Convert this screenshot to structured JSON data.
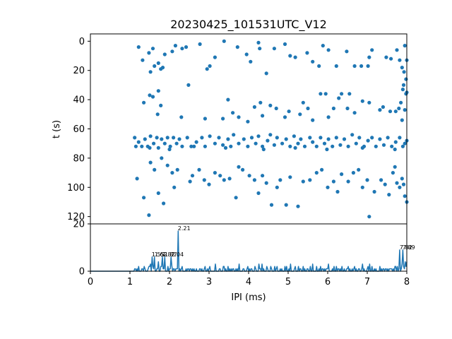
{
  "chart_data": [
    {
      "type": "scatter",
      "title": "20230425_101531UTC_V12",
      "ylabel": "t (s)",
      "xlim": [
        0,
        8
      ],
      "ylim": [
        125,
        -5
      ],
      "y_inverted": true,
      "yticks": [
        "0",
        "20",
        "40",
        "60",
        "80",
        "100",
        "120"
      ],
      "color": "#1f77b4",
      "x_shared_with_panel_below": true,
      "points": [
        [
          1.22,
          4
        ],
        [
          1.32,
          13
        ],
        [
          1.48,
          8
        ],
        [
          1.52,
          21
        ],
        [
          1.62,
          17
        ],
        [
          1.58,
          5
        ],
        [
          1.72,
          15
        ],
        [
          1.78,
          19
        ],
        [
          1.88,
          9
        ],
        [
          1.83,
          18
        ],
        [
          2.07,
          7
        ],
        [
          2.15,
          3
        ],
        [
          2.32,
          5
        ],
        [
          2.42,
          4
        ],
        [
          2.48,
          30
        ],
        [
          2.77,
          2
        ],
        [
          2.95,
          19
        ],
        [
          3.02,
          17
        ],
        [
          3.15,
          11
        ],
        [
          3.38,
          0
        ],
        [
          3.72,
          4
        ],
        [
          3.95,
          9
        ],
        [
          4.05,
          14
        ],
        [
          4.25,
          1
        ],
        [
          4.28,
          5
        ],
        [
          4.45,
          22
        ],
        [
          4.65,
          5
        ],
        [
          4.92,
          2
        ],
        [
          5.05,
          10
        ],
        [
          5.18,
          11
        ],
        [
          5.48,
          8
        ],
        [
          5.62,
          14
        ],
        [
          5.78,
          17
        ],
        [
          5.88,
          3
        ],
        [
          6.02,
          6
        ],
        [
          6.22,
          17
        ],
        [
          6.48,
          7
        ],
        [
          6.68,
          17
        ],
        [
          6.85,
          17
        ],
        [
          7.02,
          17
        ],
        [
          7.05,
          11
        ],
        [
          7.12,
          6
        ],
        [
          7.48,
          11
        ],
        [
          7.6,
          12
        ],
        [
          7.75,
          6
        ],
        [
          7.82,
          13
        ],
        [
          7.88,
          18
        ],
        [
          7.93,
          21
        ],
        [
          7.98,
          26
        ],
        [
          7.95,
          3
        ],
        [
          8.0,
          13
        ],
        [
          7.92,
          30
        ],
        [
          7.98,
          36
        ],
        [
          7.85,
          42
        ],
        [
          1.35,
          42
        ],
        [
          1.5,
          37
        ],
        [
          1.58,
          38
        ],
        [
          1.72,
          34
        ],
        [
          1.78,
          44
        ],
        [
          1.7,
          50
        ],
        [
          2.3,
          52
        ],
        [
          2.9,
          53
        ],
        [
          3.35,
          53
        ],
        [
          3.48,
          40
        ],
        [
          3.6,
          49
        ],
        [
          3.75,
          52
        ],
        [
          3.98,
          55
        ],
        [
          4.15,
          45
        ],
        [
          4.3,
          42
        ],
        [
          4.35,
          51
        ],
        [
          4.55,
          44
        ],
        [
          4.7,
          46
        ],
        [
          4.92,
          52
        ],
        [
          5.02,
          48
        ],
        [
          5.3,
          50
        ],
        [
          5.38,
          42
        ],
        [
          5.5,
          46
        ],
        [
          5.62,
          54
        ],
        [
          5.82,
          36
        ],
        [
          5.95,
          36
        ],
        [
          6.02,
          52
        ],
        [
          6.15,
          46
        ],
        [
          6.28,
          39
        ],
        [
          6.35,
          36
        ],
        [
          6.5,
          46
        ],
        [
          6.55,
          36
        ],
        [
          6.68,
          49
        ],
        [
          6.88,
          41
        ],
        [
          7.05,
          42
        ],
        [
          7.32,
          47
        ],
        [
          7.4,
          45
        ],
        [
          7.58,
          48
        ],
        [
          7.72,
          48
        ],
        [
          7.8,
          46
        ],
        [
          7.9,
          33
        ],
        [
          7.95,
          47
        ],
        [
          8.0,
          35
        ],
        [
          7.88,
          54
        ],
        [
          1.12,
          66
        ],
        [
          1.22,
          69
        ],
        [
          1.3,
          72
        ],
        [
          1.38,
          67
        ],
        [
          1.45,
          72
        ],
        [
          1.52,
          65
        ],
        [
          1.6,
          70
        ],
        [
          1.68,
          66
        ],
        [
          1.72,
          73
        ],
        [
          1.8,
          67
        ],
        [
          1.88,
          70
        ],
        [
          1.95,
          66
        ],
        [
          2.02,
          72
        ],
        [
          2.1,
          66
        ],
        [
          2.18,
          70
        ],
        [
          2.25,
          67
        ],
        [
          2.32,
          72
        ],
        [
          2.45,
          66
        ],
        [
          2.55,
          72
        ],
        [
          2.68,
          69
        ],
        [
          2.82,
          66
        ],
        [
          2.9,
          72
        ],
        [
          3.02,
          65
        ],
        [
          3.15,
          70
        ],
        [
          3.25,
          66
        ],
        [
          3.35,
          71
        ],
        [
          3.48,
          67
        ],
        [
          3.55,
          72
        ],
        [
          3.62,
          64
        ],
        [
          3.75,
          70
        ],
        [
          3.88,
          67
        ],
        [
          3.98,
          72
        ],
        [
          4.08,
          66
        ],
        [
          4.18,
          70
        ],
        [
          4.25,
          65
        ],
        [
          4.35,
          72
        ],
        [
          4.48,
          68
        ],
        [
          4.55,
          64
        ],
        [
          4.65,
          71
        ],
        [
          4.72,
          66
        ],
        [
          4.85,
          70
        ],
        [
          4.95,
          67
        ],
        [
          5.05,
          72
        ],
        [
          5.15,
          65
        ],
        [
          5.25,
          70
        ],
        [
          5.32,
          67
        ],
        [
          5.42,
          72
        ],
        [
          5.55,
          66
        ],
        [
          5.62,
          69
        ],
        [
          5.72,
          72
        ],
        [
          5.82,
          66
        ],
        [
          5.92,
          70
        ],
        [
          6.02,
          67
        ],
        [
          6.12,
          72
        ],
        [
          6.22,
          66
        ],
        [
          6.32,
          71
        ],
        [
          6.42,
          67
        ],
        [
          6.52,
          72
        ],
        [
          6.62,
          64
        ],
        [
          6.72,
          70
        ],
        [
          6.8,
          66
        ],
        [
          6.92,
          72
        ],
        [
          7.02,
          68
        ],
        [
          7.12,
          66
        ],
        [
          7.22,
          72
        ],
        [
          7.32,
          67
        ],
        [
          7.42,
          71
        ],
        [
          7.52,
          66
        ],
        [
          7.62,
          72
        ],
        [
          7.72,
          69
        ],
        [
          7.82,
          66
        ],
        [
          7.9,
          72
        ],
        [
          7.95,
          70
        ],
        [
          8.0,
          68
        ],
        [
          1.15,
          72
        ],
        [
          1.5,
          73
        ],
        [
          2.0,
          74
        ],
        [
          2.62,
          72
        ],
        [
          3.42,
          73
        ],
        [
          4.38,
          74
        ],
        [
          5.18,
          73
        ],
        [
          5.98,
          74
        ],
        [
          6.88,
          73
        ],
        [
          7.7,
          74
        ],
        [
          1.52,
          83
        ],
        [
          1.62,
          88
        ],
        [
          1.8,
          80
        ],
        [
          1.95,
          85
        ],
        [
          2.07,
          90
        ],
        [
          2.2,
          88
        ],
        [
          2.52,
          96
        ],
        [
          2.58,
          92
        ],
        [
          2.75,
          88
        ],
        [
          2.88,
          95
        ],
        [
          3.0,
          98
        ],
        [
          3.15,
          90
        ],
        [
          3.28,
          92
        ],
        [
          3.38,
          95
        ],
        [
          3.52,
          94
        ],
        [
          3.68,
          107
        ],
        [
          3.75,
          86
        ],
        [
          3.85,
          88
        ],
        [
          4.02,
          92
        ],
        [
          4.15,
          95
        ],
        [
          4.25,
          104
        ],
        [
          4.35,
          92
        ],
        [
          4.45,
          97
        ],
        [
          4.58,
          112
        ],
        [
          4.72,
          100
        ],
        [
          4.8,
          95
        ],
        [
          4.95,
          112
        ],
        [
          5.05,
          93
        ],
        [
          5.25,
          113
        ],
        [
          5.38,
          96
        ],
        [
          5.55,
          95
        ],
        [
          5.72,
          90
        ],
        [
          5.85,
          88
        ],
        [
          6.0,
          100
        ],
        [
          6.15,
          96
        ],
        [
          6.25,
          103
        ],
        [
          6.35,
          91
        ],
        [
          6.52,
          96
        ],
        [
          6.65,
          90
        ],
        [
          6.78,
          88
        ],
        [
          6.88,
          100
        ],
        [
          7.0,
          95
        ],
        [
          7.05,
          120
        ],
        [
          7.18,
          103
        ],
        [
          7.35,
          95
        ],
        [
          7.45,
          98
        ],
        [
          7.55,
          105
        ],
        [
          7.65,
          90
        ],
        [
          7.75,
          97
        ],
        [
          7.88,
          94
        ],
        [
          7.95,
          106
        ],
        [
          8.0,
          110
        ],
        [
          7.7,
          86
        ],
        [
          7.82,
          100
        ],
        [
          7.92,
          98
        ],
        [
          1.18,
          94
        ],
        [
          1.35,
          107
        ],
        [
          1.48,
          119
        ],
        [
          1.72,
          104
        ],
        [
          1.85,
          111
        ],
        [
          2.12,
          100
        ]
      ]
    },
    {
      "type": "line",
      "xlabel": "IPI (ms)",
      "xlim": [
        0,
        8
      ],
      "ylim": [
        0,
        20
      ],
      "xticks": [
        "0",
        "1",
        "2",
        "3",
        "4",
        "5",
        "6",
        "7",
        "8"
      ],
      "yticks": [
        "0",
        "20"
      ],
      "color": "#1f77b4",
      "bin_width": 0.02,
      "peaks": [
        {
          "x": 1.55,
          "label": "1.55"
        },
        {
          "x": 1.62,
          "label": "1.62"
        },
        {
          "x": 1.82,
          "label": "1.82"
        },
        {
          "x": 1.87,
          "label": "1.87"
        },
        {
          "x": 2.04,
          "label": "2.04"
        },
        {
          "x": 2.21,
          "label": "2.21"
        },
        {
          "x": 7.82,
          "label": "7.82"
        },
        {
          "x": 7.89,
          "label": "7.89"
        }
      ]
    }
  ]
}
